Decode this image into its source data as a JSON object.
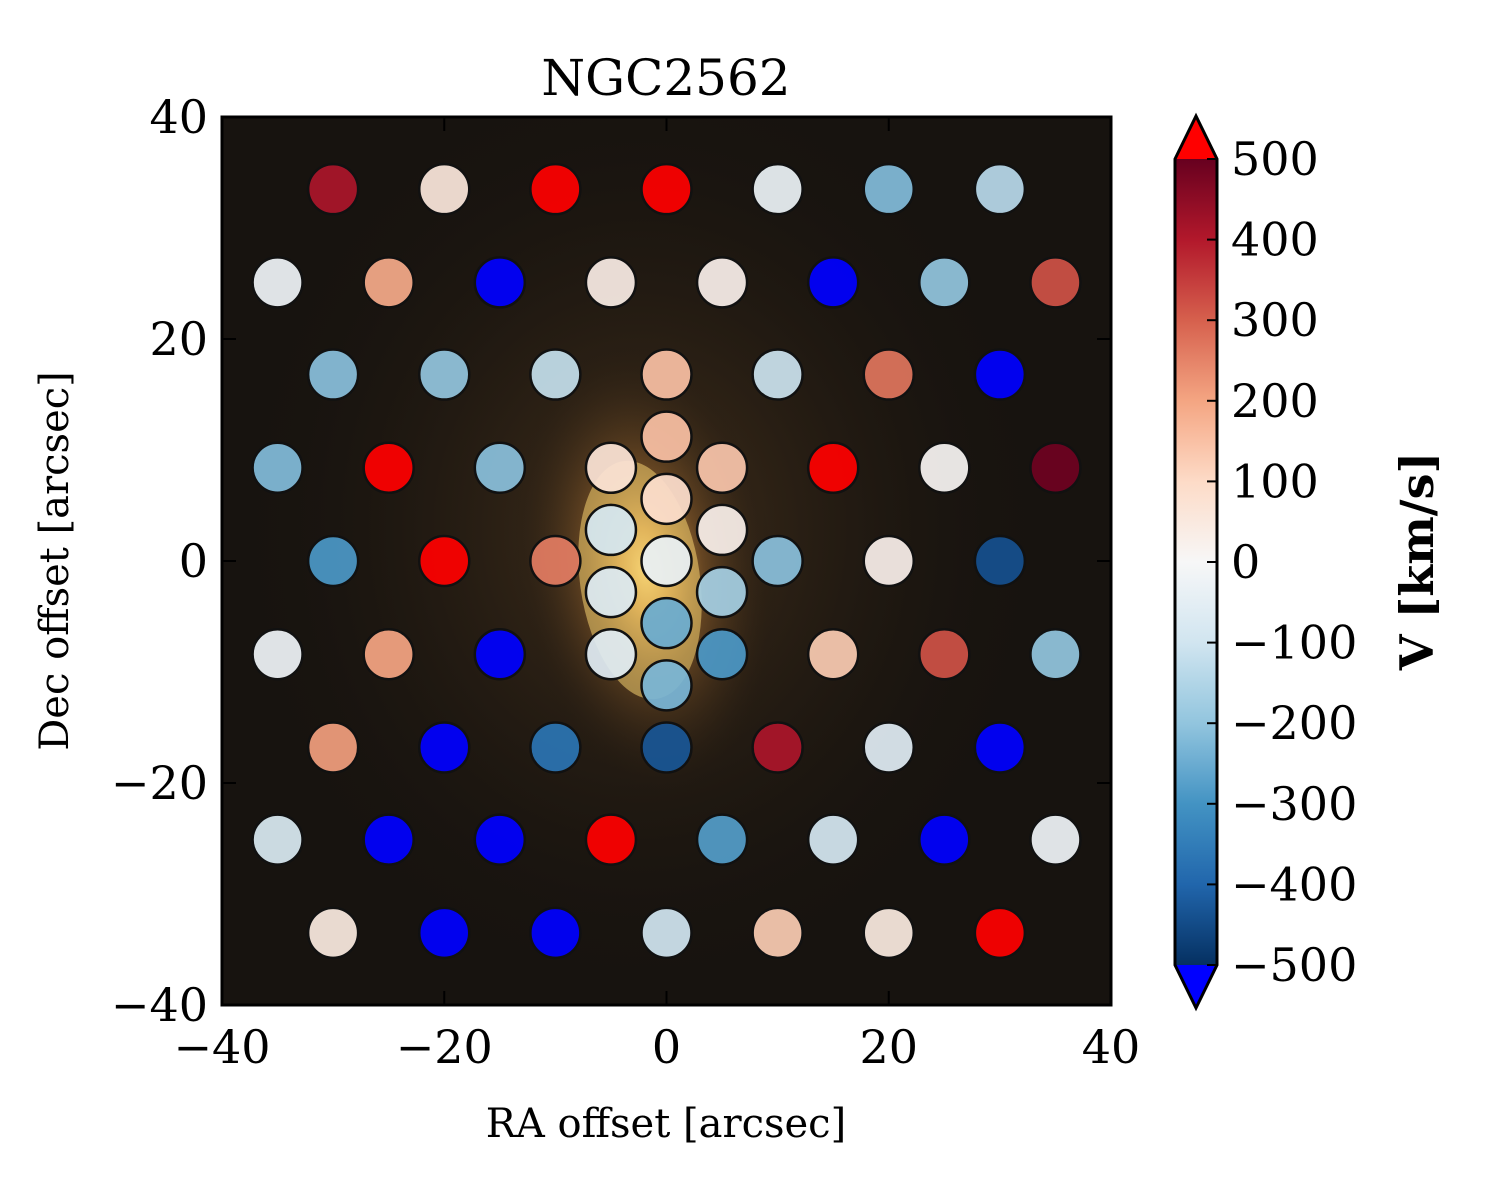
{
  "chart_data": {
    "type": "scatter",
    "title": "NGC2562",
    "xlabel": "RA offset [arcsec]",
    "ylabel": "Dec offset [arcsec]",
    "xlim": [
      -40,
      40
    ],
    "ylim": [
      -40,
      40
    ],
    "xticks": [
      -40,
      -20,
      0,
      20,
      40
    ],
    "yticks": [
      -40,
      -20,
      0,
      20,
      40
    ],
    "xtick_labels": [
      "−40",
      "−20",
      "0",
      "20",
      "40"
    ],
    "ytick_labels": [
      "−40",
      "−20",
      "0",
      "20",
      "40"
    ],
    "background": "galaxy image (elliptical galaxy, yellow core on dark background)",
    "colorbar": {
      "label": "V [km/s]",
      "vmin": -500,
      "vmax": 500,
      "ticks": [
        500,
        400,
        300,
        200,
        100,
        0,
        -100,
        -200,
        -300,
        -400,
        -500
      ],
      "tick_labels": [
        "500",
        "400",
        "300",
        "200",
        "100",
        "0",
        "−100",
        "−200",
        "−300",
        "−400",
        "−500"
      ],
      "extend": "both",
      "over_color": "#ff0000",
      "under_color": "#0000ff",
      "colormap": "RdBu_r"
    },
    "fibers": [
      {
        "x": -30,
        "y": 33.5,
        "v": 410
      },
      {
        "x": -20,
        "y": 33.5,
        "v": 60
      },
      {
        "x": -10,
        "y": 33.5,
        "v": 600
      },
      {
        "x": 0,
        "y": 33.5,
        "v": 600
      },
      {
        "x": 10,
        "y": 33.5,
        "v": -30
      },
      {
        "x": 20,
        "y": 33.5,
        "v": -220
      },
      {
        "x": 30,
        "y": 33.5,
        "v": -140
      },
      {
        "x": -35,
        "y": 25.1,
        "v": -20
      },
      {
        "x": -25,
        "y": 25.1,
        "v": 190
      },
      {
        "x": -15,
        "y": 25.1,
        "v": -600
      },
      {
        "x": -5,
        "y": 25.1,
        "v": 40
      },
      {
        "x": 5,
        "y": 25.1,
        "v": 30
      },
      {
        "x": 15,
        "y": 25.1,
        "v": -600
      },
      {
        "x": 25,
        "y": 25.1,
        "v": -200
      },
      {
        "x": 35,
        "y": 25.1,
        "v": 320
      },
      {
        "x": -30,
        "y": 16.8,
        "v": -210
      },
      {
        "x": -20,
        "y": 16.8,
        "v": -200
      },
      {
        "x": -10,
        "y": 16.8,
        "v": -120
      },
      {
        "x": 0,
        "y": 16.8,
        "v": 150
      },
      {
        "x": 10,
        "y": 16.8,
        "v": -110
      },
      {
        "x": 20,
        "y": 16.8,
        "v": 270
      },
      {
        "x": 30,
        "y": 16.8,
        "v": -600
      },
      {
        "x": -35,
        "y": 8.4,
        "v": -220
      },
      {
        "x": -25,
        "y": 8.4,
        "v": 600
      },
      {
        "x": -15,
        "y": 8.4,
        "v": -210
      },
      {
        "x": -5,
        "y": 8.4,
        "v": 70
      },
      {
        "x": 5,
        "y": 8.4,
        "v": 140
      },
      {
        "x": 15,
        "y": 8.4,
        "v": 600
      },
      {
        "x": 25,
        "y": 8.4,
        "v": 10
      },
      {
        "x": 35,
        "y": 8.4,
        "v": 490
      },
      {
        "x": 0,
        "y": 11.2,
        "v": 150
      },
      {
        "x": 0,
        "y": 5.6,
        "v": 90
      },
      {
        "x": -5,
        "y": 2.8,
        "v": -90
      },
      {
        "x": 5,
        "y": 2.8,
        "v": 30
      },
      {
        "x": 0,
        "y": 0,
        "v": -40
      },
      {
        "x": -5,
        "y": -2.8,
        "v": -70
      },
      {
        "x": 5,
        "y": -2.8,
        "v": -170
      },
      {
        "x": 0,
        "y": -5.6,
        "v": -250
      },
      {
        "x": -5,
        "y": -8.4,
        "v": -60
      },
      {
        "x": 5,
        "y": -8.4,
        "v": -290
      },
      {
        "x": 0,
        "y": -11.2,
        "v": -230
      },
      {
        "x": -30,
        "y": 0,
        "v": -290
      },
      {
        "x": -20,
        "y": 0,
        "v": 600
      },
      {
        "x": -10,
        "y": 0,
        "v": 260
      },
      {
        "x": 10,
        "y": 0,
        "v": -210
      },
      {
        "x": 20,
        "y": 0,
        "v": 30
      },
      {
        "x": 30,
        "y": 0,
        "v": -440
      },
      {
        "x": -35,
        "y": -8.4,
        "v": -20
      },
      {
        "x": -25,
        "y": -8.4,
        "v": 200
      },
      {
        "x": -15,
        "y": -8.4,
        "v": -600
      },
      {
        "x": 15,
        "y": -8.4,
        "v": 130
      },
      {
        "x": 25,
        "y": -8.4,
        "v": 320
      },
      {
        "x": 35,
        "y": -8.4,
        "v": -200
      },
      {
        "x": -30,
        "y": -16.8,
        "v": 210
      },
      {
        "x": -20,
        "y": -16.8,
        "v": -600
      },
      {
        "x": -10,
        "y": -16.8,
        "v": -370
      },
      {
        "x": 0,
        "y": -16.8,
        "v": -430
      },
      {
        "x": 10,
        "y": -16.8,
        "v": 410
      },
      {
        "x": 20,
        "y": -16.8,
        "v": -60
      },
      {
        "x": 30,
        "y": -16.8,
        "v": -600
      },
      {
        "x": -35,
        "y": -25.1,
        "v": -80
      },
      {
        "x": -25,
        "y": -25.1,
        "v": -600
      },
      {
        "x": -15,
        "y": -25.1,
        "v": -600
      },
      {
        "x": -5,
        "y": -25.1,
        "v": 600
      },
      {
        "x": 5,
        "y": -25.1,
        "v": -280
      },
      {
        "x": 15,
        "y": -25.1,
        "v": -90
      },
      {
        "x": 25,
        "y": -25.1,
        "v": -600
      },
      {
        "x": 35,
        "y": -25.1,
        "v": -20
      },
      {
        "x": -30,
        "y": -33.5,
        "v": 50
      },
      {
        "x": -20,
        "y": -33.5,
        "v": -600
      },
      {
        "x": -10,
        "y": -33.5,
        "v": -600
      },
      {
        "x": 0,
        "y": -33.5,
        "v": -100
      },
      {
        "x": 10,
        "y": -33.5,
        "v": 130
      },
      {
        "x": 20,
        "y": -33.5,
        "v": 50
      },
      {
        "x": 30,
        "y": -33.5,
        "v": 600
      }
    ]
  }
}
